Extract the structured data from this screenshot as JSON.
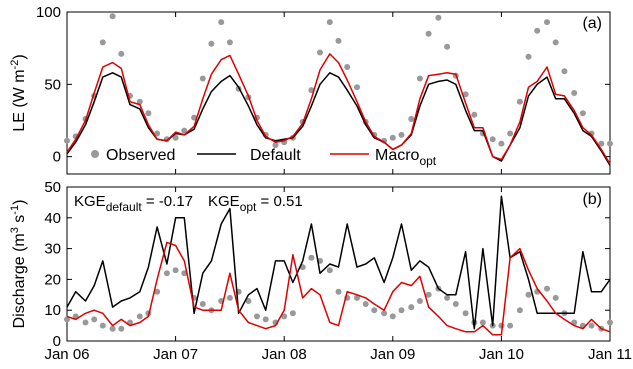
{
  "chart_data": [
    {
      "type": "line",
      "panel_label": "(a)",
      "ylabel": "LE (W m",
      "ylabel_exp": "-2",
      "ylabel_close": ")",
      "ylim": [
        -12,
        100
      ],
      "yticks": [
        0,
        50,
        100
      ],
      "xlim": [
        2006.0,
        2011.0
      ],
      "legend": {
        "placement": "bottom",
        "observed": "Observed",
        "default": "Default",
        "macro": "Macro",
        "macro_sub": "opt"
      },
      "series": [
        {
          "name": "Observed",
          "color": "#999999",
          "style": "markers",
          "x": [
            2006.0,
            2006.08,
            2006.17,
            2006.25,
            2006.33,
            2006.42,
            2006.5,
            2006.58,
            2006.67,
            2006.75,
            2006.83,
            2006.92,
            2007.0,
            2007.08,
            2007.17,
            2007.25,
            2007.33,
            2007.42,
            2007.5,
            2007.58,
            2007.67,
            2007.75,
            2007.83,
            2007.92,
            2008.0,
            2008.08,
            2008.17,
            2008.25,
            2008.33,
            2008.42,
            2008.5,
            2008.58,
            2008.67,
            2008.75,
            2008.83,
            2008.92,
            2009.0,
            2009.08,
            2009.17,
            2009.25,
            2009.33,
            2009.42,
            2009.5,
            2009.58,
            2009.67,
            2009.75,
            2009.83,
            2009.92,
            2010.0,
            2010.08,
            2010.17,
            2010.25,
            2010.33,
            2010.42,
            2010.5,
            2010.58,
            2010.67,
            2010.75,
            2010.83,
            2010.92,
            2011.0
          ],
          "y": [
            11,
            14,
            26,
            42,
            79,
            97,
            71,
            42,
            38,
            30,
            16,
            12,
            13,
            18,
            27,
            54,
            78,
            93,
            79,
            47,
            41,
            27,
            15,
            8,
            10,
            13,
            24,
            46,
            72,
            93,
            80,
            62,
            48,
            24,
            15,
            11,
            13,
            15,
            26,
            54,
            85,
            96,
            76,
            56,
            43,
            29,
            16,
            12,
            9,
            16,
            38,
            69,
            87,
            93,
            79,
            59,
            44,
            30,
            16,
            9,
            9
          ]
        },
        {
          "name": "Default",
          "color": "#000000",
          "style": "line",
          "x": [
            2006.0,
            2006.08,
            2006.17,
            2006.25,
            2006.33,
            2006.42,
            2006.5,
            2006.58,
            2006.67,
            2006.75,
            2006.83,
            2006.92,
            2007.0,
            2007.08,
            2007.17,
            2007.25,
            2007.33,
            2007.42,
            2007.5,
            2007.58,
            2007.67,
            2007.75,
            2007.83,
            2007.92,
            2008.0,
            2008.08,
            2008.17,
            2008.25,
            2008.33,
            2008.42,
            2008.5,
            2008.58,
            2008.67,
            2008.75,
            2008.83,
            2008.92,
            2009.0,
            2009.08,
            2009.17,
            2009.25,
            2009.33,
            2009.42,
            2009.5,
            2009.58,
            2009.67,
            2009.75,
            2009.83,
            2009.92,
            2010.0,
            2010.08,
            2010.17,
            2010.25,
            2010.33,
            2010.42,
            2010.5,
            2010.58,
            2010.67,
            2010.75,
            2010.83,
            2010.92,
            2011.0
          ],
          "y": [
            2,
            10,
            22,
            38,
            55,
            58,
            55,
            36,
            33,
            20,
            12,
            11,
            16,
            15,
            19,
            33,
            45,
            52,
            56,
            48,
            35,
            22,
            13,
            11,
            12,
            13,
            21,
            35,
            50,
            58,
            55,
            46,
            35,
            22,
            13,
            10,
            5,
            8,
            15,
            35,
            50,
            52,
            53,
            50,
            32,
            18,
            18,
            0,
            -3,
            8,
            20,
            42,
            50,
            55,
            40,
            40,
            30,
            18,
            14,
            4,
            -6
          ]
        },
        {
          "name": "Macroopt",
          "color": "#e00000",
          "style": "line",
          "x": [
            2006.0,
            2006.08,
            2006.17,
            2006.25,
            2006.33,
            2006.42,
            2006.5,
            2006.58,
            2006.67,
            2006.75,
            2006.83,
            2006.92,
            2007.0,
            2007.08,
            2007.17,
            2007.25,
            2007.33,
            2007.42,
            2007.5,
            2007.58,
            2007.67,
            2007.75,
            2007.83,
            2007.92,
            2008.0,
            2008.08,
            2008.17,
            2008.25,
            2008.33,
            2008.42,
            2008.5,
            2008.58,
            2008.67,
            2008.75,
            2008.83,
            2008.92,
            2009.0,
            2009.08,
            2009.17,
            2009.25,
            2009.33,
            2009.42,
            2009.5,
            2009.58,
            2009.67,
            2009.75,
            2009.83,
            2009.92,
            2010.0,
            2010.08,
            2010.17,
            2010.25,
            2010.33,
            2010.42,
            2010.5,
            2010.58,
            2010.67,
            2010.75,
            2010.83,
            2010.92,
            2011.0
          ],
          "y": [
            3,
            12,
            25,
            44,
            62,
            65,
            61,
            38,
            36,
            22,
            12,
            11,
            17,
            15,
            21,
            40,
            57,
            67,
            70,
            57,
            42,
            25,
            14,
            10,
            11,
            14,
            23,
            40,
            60,
            71,
            65,
            53,
            38,
            24,
            14,
            10,
            5,
            8,
            16,
            40,
            56,
            57,
            58,
            57,
            37,
            20,
            20,
            0,
            -2,
            8,
            24,
            48,
            52,
            62,
            43,
            42,
            32,
            20,
            15,
            5,
            -5
          ]
        }
      ]
    },
    {
      "type": "line",
      "panel_label": "(b)",
      "ylabel": "Discharge (m",
      "ylabel_exp1": "3",
      "ylabel_mid": " s",
      "ylabel_exp2": "-1",
      "ylabel_close": ")",
      "ylim": [
        0,
        50
      ],
      "yticks": [
        0,
        10,
        20,
        30,
        40,
        50
      ],
      "xlim": [
        2006.0,
        2011.0
      ],
      "xticks": [
        2006,
        2007,
        2008,
        2009,
        2010,
        2011
      ],
      "xticklabels": [
        "Jan 06",
        "Jan 07",
        "Jan 08",
        "Jan 09",
        "Jan 10",
        "Jan 11"
      ],
      "annotations": {
        "kge_default_main": "KGE",
        "kge_default_sub": "default",
        "kge_default_val": " = -0.17",
        "kge_opt_main": "KGE",
        "kge_opt_sub": "opt",
        "kge_opt_val": " = 0.51"
      },
      "series": [
        {
          "name": "Observed",
          "color": "#999999",
          "style": "markers",
          "x": [
            2006.0,
            2006.08,
            2006.17,
            2006.25,
            2006.33,
            2006.42,
            2006.5,
            2006.58,
            2006.67,
            2006.75,
            2006.83,
            2006.92,
            2007.0,
            2007.08,
            2007.17,
            2007.25,
            2007.33,
            2007.42,
            2007.5,
            2007.58,
            2007.67,
            2007.75,
            2007.83,
            2007.92,
            2008.0,
            2008.08,
            2008.17,
            2008.25,
            2008.33,
            2008.42,
            2008.5,
            2008.58,
            2008.67,
            2008.75,
            2008.83,
            2008.92,
            2009.0,
            2009.08,
            2009.17,
            2009.25,
            2009.33,
            2009.42,
            2009.5,
            2009.58,
            2009.67,
            2009.75,
            2009.83,
            2009.92,
            2010.0,
            2010.08,
            2010.17,
            2010.25,
            2010.33,
            2010.42,
            2010.5,
            2010.58,
            2010.67,
            2010.75,
            2010.83,
            2010.92,
            2011.0
          ],
          "y": [
            7,
            8,
            6,
            7,
            5,
            4,
            4,
            6,
            8,
            9,
            16,
            22,
            23,
            22,
            14,
            12,
            10,
            13,
            14,
            16,
            13,
            8,
            7,
            6,
            8,
            9,
            24,
            27,
            26,
            23,
            16,
            14,
            14,
            12,
            10,
            9,
            8,
            10,
            11,
            13,
            15,
            17,
            14,
            12,
            9,
            6,
            6,
            5,
            5,
            5,
            10,
            15,
            16,
            17,
            14,
            9,
            6,
            5,
            5,
            4,
            6
          ]
        },
        {
          "name": "Default",
          "color": "#000000",
          "style": "line",
          "x": [
            2006.0,
            2006.08,
            2006.17,
            2006.25,
            2006.33,
            2006.42,
            2006.5,
            2006.58,
            2006.67,
            2006.75,
            2006.83,
            2006.92,
            2007.0,
            2007.08,
            2007.17,
            2007.25,
            2007.33,
            2007.42,
            2007.5,
            2007.58,
            2007.67,
            2007.75,
            2007.83,
            2007.92,
            2008.0,
            2008.08,
            2008.17,
            2008.25,
            2008.33,
            2008.42,
            2008.5,
            2008.58,
            2008.67,
            2008.75,
            2008.83,
            2008.92,
            2009.0,
            2009.08,
            2009.17,
            2009.25,
            2009.33,
            2009.42,
            2009.5,
            2009.58,
            2009.67,
            2009.75,
            2009.83,
            2009.92,
            2010.0,
            2010.08,
            2010.17,
            2010.25,
            2010.33,
            2010.42,
            2010.5,
            2010.58,
            2010.67,
            2010.75,
            2010.83,
            2010.92,
            2011.0
          ],
          "y": [
            11,
            16,
            13,
            18,
            26,
            11,
            13,
            14,
            16,
            24,
            37,
            25,
            40,
            40,
            9,
            22,
            26,
            38,
            43,
            9,
            15,
            17,
            10,
            26,
            26,
            19,
            26,
            38,
            22,
            25,
            24,
            38,
            24,
            25,
            27,
            19,
            27,
            38,
            23,
            26,
            24,
            17,
            15,
            15,
            29,
            4,
            30,
            5,
            47,
            27,
            29,
            20,
            9,
            9,
            9,
            9,
            9,
            29,
            16,
            16,
            20
          ]
        },
        {
          "name": "Macroopt",
          "color": "#e00000",
          "style": "line",
          "x": [
            2006.0,
            2006.08,
            2006.17,
            2006.25,
            2006.33,
            2006.42,
            2006.5,
            2006.58,
            2006.67,
            2006.75,
            2006.83,
            2006.92,
            2007.0,
            2007.08,
            2007.17,
            2007.25,
            2007.33,
            2007.42,
            2007.5,
            2007.58,
            2007.67,
            2007.75,
            2007.83,
            2007.92,
            2008.0,
            2008.08,
            2008.17,
            2008.25,
            2008.33,
            2008.42,
            2008.5,
            2008.58,
            2008.67,
            2008.75,
            2008.83,
            2008.92,
            2009.0,
            2009.08,
            2009.17,
            2009.25,
            2009.33,
            2009.42,
            2009.5,
            2009.58,
            2009.67,
            2009.75,
            2009.83,
            2009.92,
            2010.0,
            2010.08,
            2010.17,
            2010.25,
            2010.33,
            2010.42,
            2010.5,
            2010.58,
            2010.67,
            2010.75,
            2010.83,
            2010.92,
            2011.0
          ],
          "y": [
            8,
            7,
            9,
            10,
            9,
            5,
            7,
            5,
            6,
            8,
            20,
            32,
            31,
            26,
            11,
            10,
            10,
            10,
            22,
            10,
            6,
            5,
            4,
            5,
            10,
            28,
            14,
            17,
            15,
            6,
            5,
            16,
            15,
            14,
            12,
            10,
            16,
            19,
            18,
            21,
            11,
            8,
            5,
            4,
            3,
            3,
            5,
            2,
            2,
            27,
            30,
            23,
            17,
            13,
            9,
            7,
            5,
            4,
            7,
            4,
            3
          ]
        }
      ]
    }
  ]
}
